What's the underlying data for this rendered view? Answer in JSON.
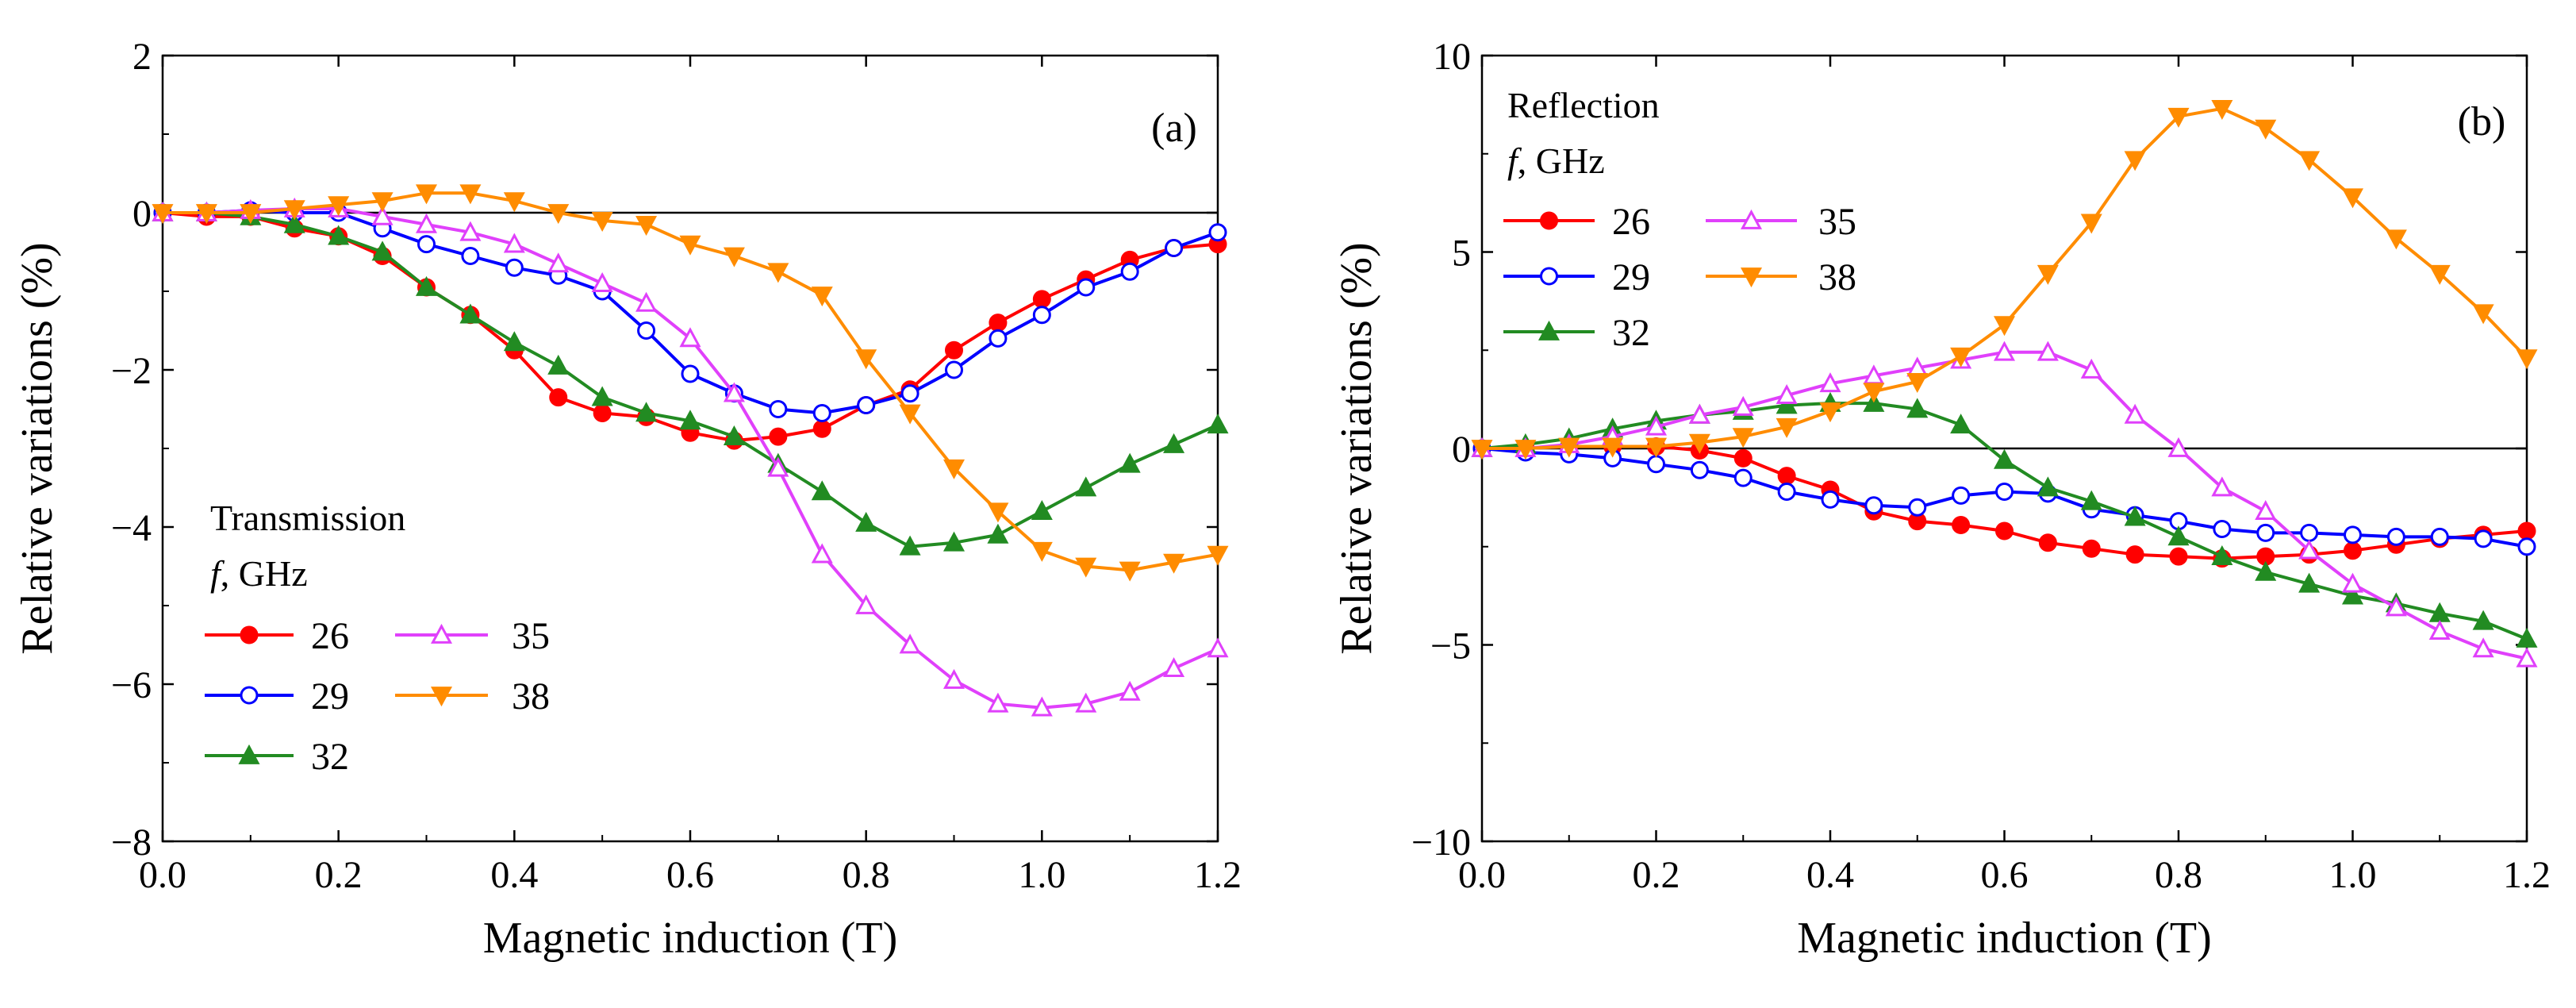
{
  "figure": {
    "colors": {
      "26": "#ff0000",
      "29": "#0000ff",
      "32": "#228b22",
      "35": "#e040fb",
      "38": "#ff8c00"
    }
  },
  "chart_data": [
    {
      "type": "line",
      "panel_label": "(a)",
      "xlabel": "Magnetic induction (T)",
      "ylabel": "Relative variations (%)",
      "xlim": [
        0,
        1.2
      ],
      "ylim": [
        -8,
        2
      ],
      "xticks": [
        0,
        0.2,
        0.4,
        0.6,
        0.8,
        1.0,
        1.2
      ],
      "xtick_labels": [
        "0.0",
        "0.2",
        "0.4",
        "0.6",
        "0.8",
        "1.0",
        "1.2"
      ],
      "yticks": [
        -8,
        -6,
        -4,
        -2,
        0,
        2
      ],
      "ytick_labels": [
        "−8",
        "−6",
        "−4",
        "−2",
        "0",
        "2"
      ],
      "reference_line": 0,
      "legend_title": "Transmission",
      "legend_subtitle_italic": "f",
      "legend_subtitle_rest": ", GHz",
      "legend_position": "bottom-left",
      "x": [
        0,
        0.05,
        0.1,
        0.15,
        0.2,
        0.25,
        0.3,
        0.35,
        0.4,
        0.45,
        0.5,
        0.55,
        0.6,
        0.65,
        0.7,
        0.75,
        0.8,
        0.85,
        0.9,
        0.95,
        1.0,
        1.05,
        1.1,
        1.15,
        1.2
      ],
      "series": [
        {
          "name": "26",
          "marker": "circle-filled",
          "values": [
            0,
            -0.05,
            -0.05,
            -0.2,
            -0.3,
            -0.55,
            -0.95,
            -1.3,
            -1.75,
            -2.35,
            -2.55,
            -2.6,
            -2.8,
            -2.9,
            -2.85,
            -2.75,
            -2.45,
            -2.25,
            -1.75,
            -1.4,
            -1.1,
            -0.85,
            -0.6,
            -0.45,
            -0.4
          ]
        },
        {
          "name": "29",
          "marker": "circle-open",
          "values": [
            0,
            0,
            0.03,
            0,
            0,
            -0.2,
            -0.4,
            -0.55,
            -0.7,
            -0.8,
            -1.0,
            -1.5,
            -2.05,
            -2.3,
            -2.5,
            -2.55,
            -2.45,
            -2.3,
            -2.0,
            -1.6,
            -1.3,
            -0.95,
            -0.75,
            -0.45,
            -0.25
          ]
        },
        {
          "name": "32",
          "marker": "triangle-up-filled",
          "values": [
            0,
            0,
            -0.05,
            -0.15,
            -0.3,
            -0.5,
            -0.95,
            -1.3,
            -1.65,
            -1.95,
            -2.35,
            -2.55,
            -2.65,
            -2.85,
            -3.2,
            -3.55,
            -3.95,
            -4.25,
            -4.2,
            -4.1,
            -3.8,
            -3.5,
            -3.2,
            -2.95,
            -2.7
          ]
        },
        {
          "name": "35",
          "marker": "triangle-up-open",
          "values": [
            0,
            0,
            0.03,
            0.05,
            0.05,
            -0.05,
            -0.15,
            -0.25,
            -0.4,
            -0.65,
            -0.9,
            -1.15,
            -1.6,
            -2.3,
            -3.25,
            -4.35,
            -5.0,
            -5.5,
            -5.95,
            -6.25,
            -6.3,
            -6.25,
            -6.1,
            -5.8,
            -5.55
          ]
        },
        {
          "name": "38",
          "marker": "triangle-down-filled",
          "values": [
            0,
            0,
            0,
            0.05,
            0.1,
            0.15,
            0.25,
            0.25,
            0.15,
            0,
            -0.1,
            -0.15,
            -0.4,
            -0.55,
            -0.75,
            -1.05,
            -1.85,
            -2.55,
            -3.25,
            -3.8,
            -4.3,
            -4.5,
            -4.55,
            -4.45,
            -4.35
          ]
        }
      ]
    },
    {
      "type": "line",
      "panel_label": "(b)",
      "xlabel": "Magnetic induction (T)",
      "ylabel": "Relative variations (%)",
      "xlim": [
        0,
        1.2
      ],
      "ylim": [
        -10,
        10
      ],
      "xticks": [
        0,
        0.2,
        0.4,
        0.6,
        0.8,
        1.0,
        1.2
      ],
      "xtick_labels": [
        "0.0",
        "0.2",
        "0.4",
        "0.6",
        "0.8",
        "1.0",
        "1.2"
      ],
      "yticks": [
        -10,
        -5,
        0,
        5,
        10
      ],
      "ytick_labels": [
        "−10",
        "−5",
        "0",
        "5",
        "10"
      ],
      "reference_line": 0,
      "legend_title": "Reflection",
      "legend_subtitle_italic": "f",
      "legend_subtitle_rest": ", GHz",
      "legend_position": "top-left",
      "x": [
        0,
        0.05,
        0.1,
        0.15,
        0.2,
        0.25,
        0.3,
        0.35,
        0.4,
        0.45,
        0.5,
        0.55,
        0.6,
        0.65,
        0.7,
        0.75,
        0.8,
        0.85,
        0.9,
        0.95,
        1.0,
        1.05,
        1.1,
        1.15,
        1.2
      ],
      "series": [
        {
          "name": "26",
          "marker": "circle-filled",
          "values": [
            0,
            0,
            0.05,
            0.05,
            0.05,
            -0.05,
            -0.25,
            -0.7,
            -1.05,
            -1.6,
            -1.85,
            -1.95,
            -2.1,
            -2.4,
            -2.55,
            -2.7,
            -2.75,
            -2.8,
            -2.75,
            -2.7,
            -2.6,
            -2.45,
            -2.3,
            -2.2,
            -2.1
          ]
        },
        {
          "name": "29",
          "marker": "circle-open",
          "values": [
            0,
            -0.1,
            -0.15,
            -0.25,
            -0.4,
            -0.55,
            -0.75,
            -1.1,
            -1.3,
            -1.45,
            -1.5,
            -1.2,
            -1.1,
            -1.15,
            -1.55,
            -1.7,
            -1.85,
            -2.05,
            -2.15,
            -2.15,
            -2.2,
            -2.25,
            -2.25,
            -2.3,
            -2.5
          ]
        },
        {
          "name": "32",
          "marker": "triangle-up-filled",
          "values": [
            0,
            0.1,
            0.25,
            0.5,
            0.7,
            0.85,
            0.95,
            1.1,
            1.15,
            1.15,
            1.0,
            0.6,
            -0.3,
            -1.0,
            -1.35,
            -1.75,
            -2.25,
            -2.75,
            -3.15,
            -3.45,
            -3.75,
            -3.95,
            -4.2,
            -4.4,
            -4.85
          ]
        },
        {
          "name": "35",
          "marker": "triangle-up-open",
          "values": [
            0,
            0,
            0.1,
            0.3,
            0.55,
            0.85,
            1.05,
            1.35,
            1.65,
            1.85,
            2.05,
            2.25,
            2.45,
            2.45,
            2.0,
            0.85,
            0.0,
            -1.0,
            -1.6,
            -2.6,
            -3.45,
            -4.05,
            -4.65,
            -5.1,
            -5.35
          ]
        },
        {
          "name": "38",
          "marker": "triangle-down-filled",
          "values": [
            0,
            0,
            0.05,
            0.05,
            0.05,
            0.15,
            0.3,
            0.55,
            0.95,
            1.45,
            1.7,
            2.35,
            3.15,
            4.45,
            5.75,
            7.35,
            8.45,
            8.65,
            8.15,
            7.35,
            6.4,
            5.35,
            4.45,
            3.45,
            2.3
          ]
        }
      ]
    }
  ]
}
